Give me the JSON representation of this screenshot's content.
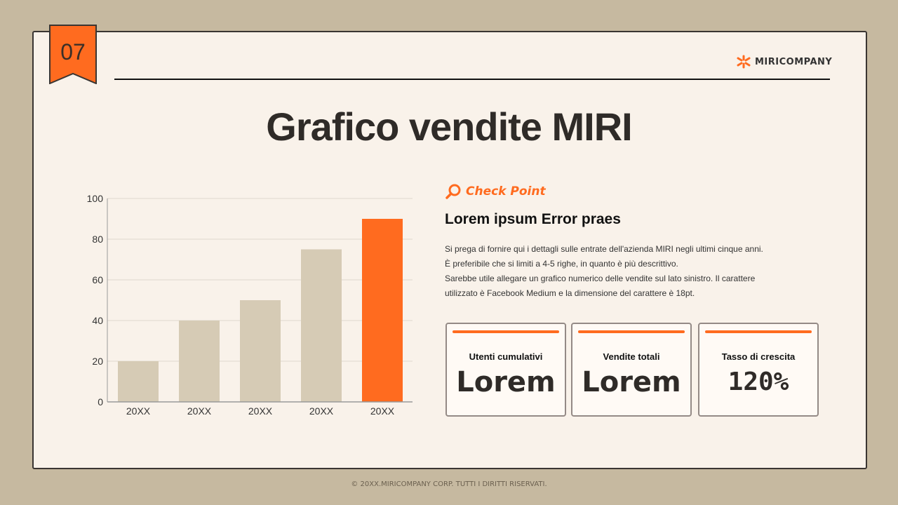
{
  "page_number": "07",
  "logo": {
    "text": "MIRICOMPANY"
  },
  "title": "Grafico vendite MIRI",
  "check_point": {
    "label": "Check Point",
    "icon": "magnifier-icon"
  },
  "subheading": "Lorem ipsum Error praes",
  "body_lines": [
    "Si prega di fornire qui i dettagli sulle entrate dell'azienda MIRI negli ultimi cinque anni.",
    "È preferibile che si limiti a 4-5 righe, in quanto è più descrittivo.",
    "Sarebbe utile allegare un grafico numerico delle vendite sul lato sinistro. Il carattere",
    "utilizzato è Facebook Medium e la dimensione del carattere è 18pt."
  ],
  "cards": [
    {
      "label": "Utenti cumulativi",
      "value": "Lorem"
    },
    {
      "label": "Vendite totali",
      "value": "Lorem"
    },
    {
      "label": "Tasso di crescita",
      "value": "120%"
    }
  ],
  "footer": "© 20XX.MIRICOMPANY CORP. TUTTI I DIRITTI RISERVATI.",
  "colors": {
    "accent": "#ff6b1f",
    "bar": "#d6cbb5",
    "background": "#c6b9a0",
    "slide": "#f9f2ea"
  },
  "chart_data": {
    "type": "bar",
    "categories": [
      "20XX",
      "20XX",
      "20XX",
      "20XX",
      "20XX"
    ],
    "values": [
      20,
      40,
      50,
      75,
      90
    ],
    "highlight_index": 4,
    "ylim": [
      0,
      100
    ],
    "yticks": [
      0,
      20,
      40,
      60,
      80,
      100
    ],
    "grid": true,
    "xlabel": "",
    "ylabel": "",
    "title": ""
  }
}
